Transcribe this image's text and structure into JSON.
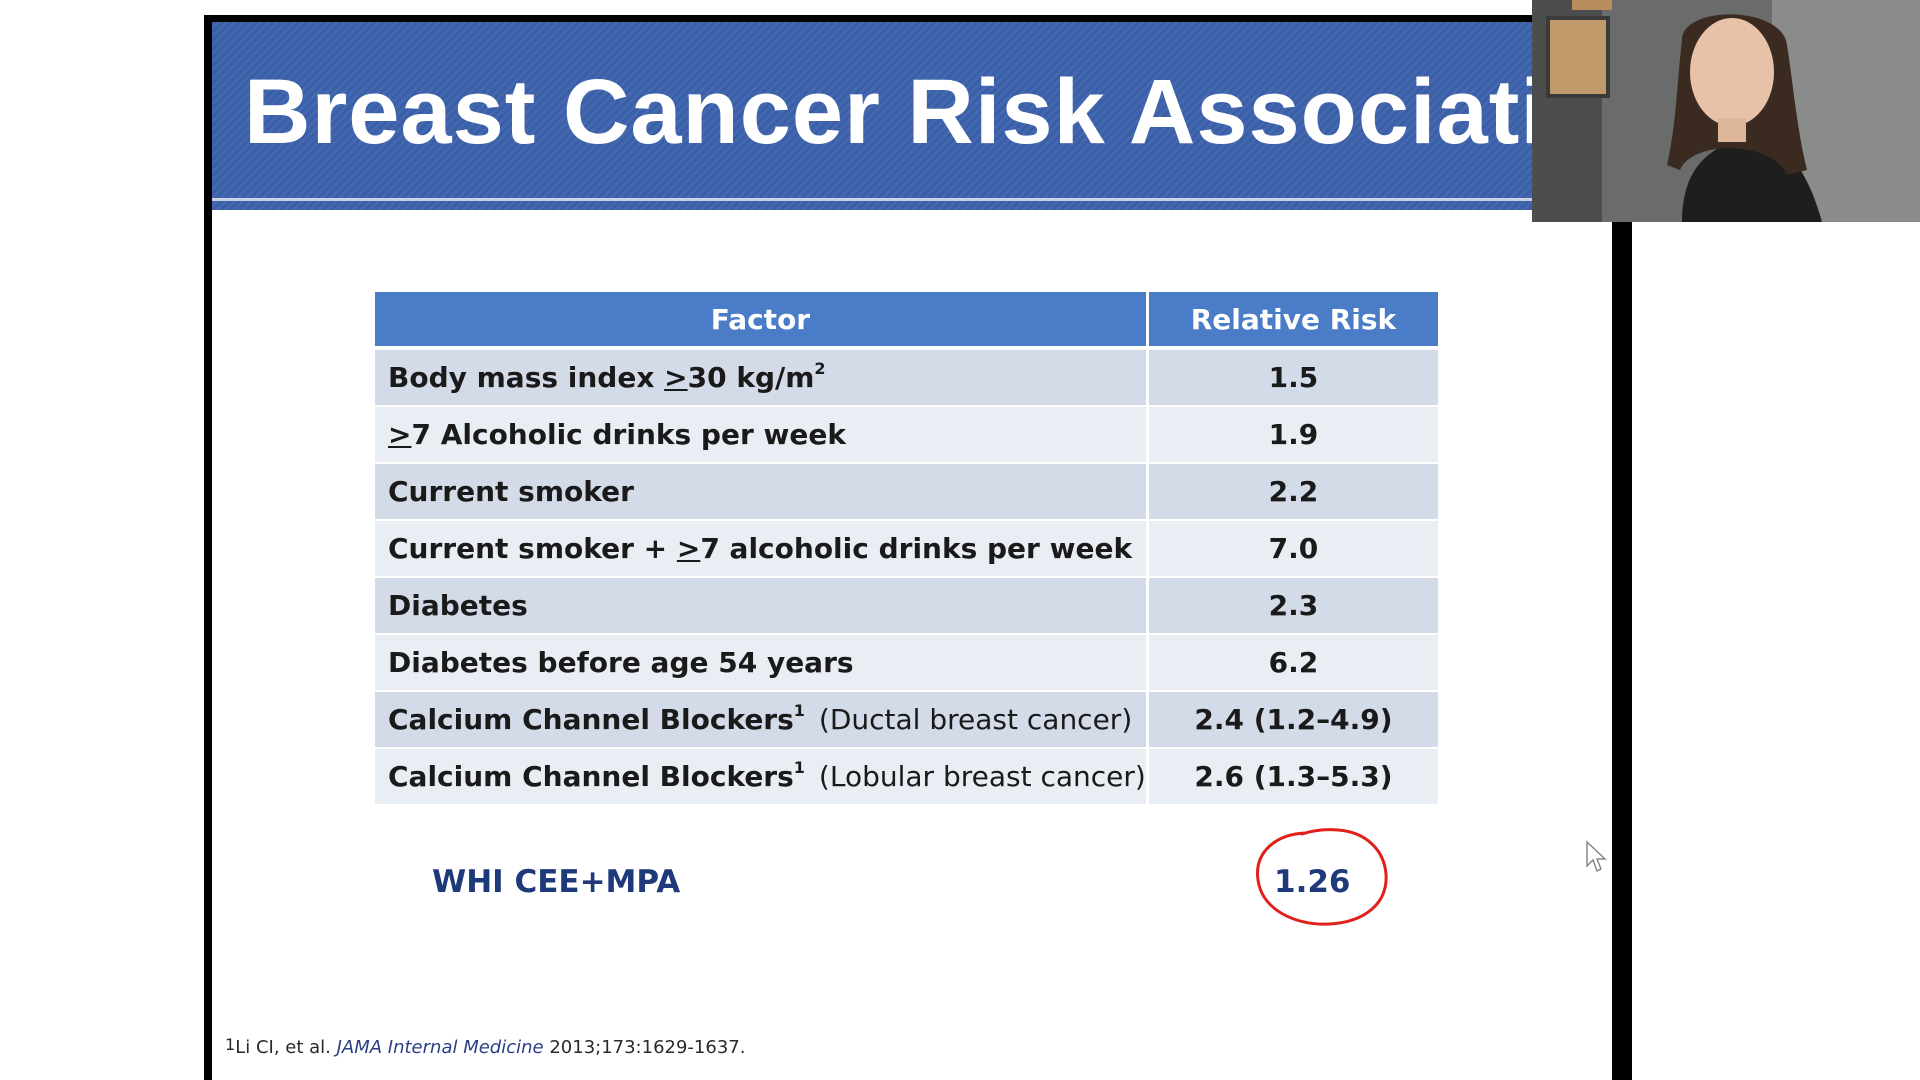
{
  "slide": {
    "title": "Breast Cancer Risk Association",
    "table": {
      "headers": [
        "Factor",
        "Relative Risk"
      ],
      "rows": [
        {
          "pre": "Body mass index ",
          "ul": ">",
          "post": "30 kg/m",
          "sup": "2",
          "suffix": "",
          "risk": "1.5"
        },
        {
          "pre": "",
          "ul": ">",
          "post": "7 Alcoholic drinks per week",
          "sup": "",
          "suffix": "",
          "risk": "1.9"
        },
        {
          "pre": "Current smoker",
          "ul": "",
          "post": "",
          "sup": "",
          "suffix": "",
          "risk": "2.2"
        },
        {
          "pre": "Current smoker + ",
          "ul": ">",
          "post": "7 alcoholic drinks per week",
          "sup": "",
          "suffix": "",
          "risk": "7.0"
        },
        {
          "pre": "Diabetes",
          "ul": "",
          "post": "",
          "sup": "",
          "suffix": "",
          "risk": "2.3"
        },
        {
          "pre": "Diabetes before age 54 years",
          "ul": "",
          "post": "",
          "sup": "",
          "suffix": "",
          "risk": "6.2"
        },
        {
          "pre": "Calcium Channel Blockers",
          "ul": "",
          "post": "",
          "sup": "1",
          "suffix": "(Ductal breast cancer)",
          "risk": "2.4 (1.2–4.9)"
        },
        {
          "pre": "Calcium Channel Blockers",
          "ul": "",
          "post": "",
          "sup": "1",
          "suffix": "(Lobular breast cancer)",
          "risk": "2.6 (1.3–5.3)"
        }
      ]
    },
    "whi": {
      "label": "WHI CEE+MPA",
      "value": "1.26"
    },
    "footnote": {
      "sup": "1",
      "authors": "Li CI, et al. ",
      "journal": "JAMA Internal Medicine",
      "citation": " 2013;173:1629-1637."
    },
    "annotation_color": "#e0201a",
    "header_color": "#4a7cc7"
  },
  "webcam": {
    "icon": "presenter-video-icon"
  }
}
